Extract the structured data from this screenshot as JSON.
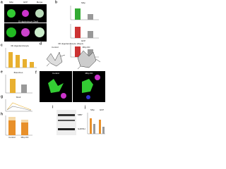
{
  "panels": [
    {
      "letter": "a",
      "labels": [
        "Mbp",
        "GFP",
        "Merge",
        "3D oligodendrocyte (Day4)"
      ]
    },
    {
      "letter": "b",
      "labels": [
        "Mbp",
        "GFP"
      ]
    },
    {
      "letter": "c",
      "labels": [
        "3D oligodendrocyte"
      ]
    },
    {
      "letter": "d",
      "labels": [
        "3D oligodendrocyte (Day4)",
        "Control",
        "Mbp KD"
      ]
    },
    {
      "letter": "e",
      "labels": [
        "Branches"
      ]
    },
    {
      "letter": "f",
      "labels": [
        "Control",
        "Mbp KD"
      ]
    },
    {
      "letter": "g",
      "labels": [
        "Sholl"
      ]
    },
    {
      "letter": "h",
      "labels": [
        "Control",
        "Mbp KD"
      ]
    },
    {
      "letter": "i",
      "labels": [
        "MBP",
        "GAPDH"
      ]
    },
    {
      "letter": "j",
      "labels": [
        "Mbp",
        "GFP"
      ]
    }
  ]
}
